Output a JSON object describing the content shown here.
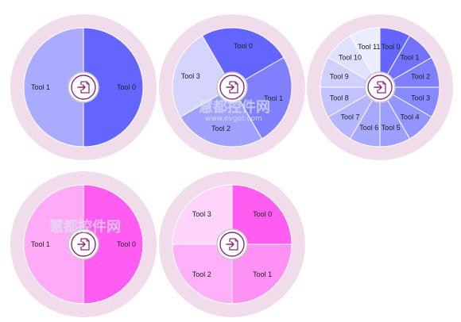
{
  "watermark": {
    "text": "慧都控件网",
    "subtext": "www.evget.com"
  },
  "center_icon": "import-document-icon",
  "colors": {
    "outer_ring": "#f0dcea",
    "hub_ring": "#c8c8c8",
    "hub_fill": "#ffffff",
    "icon": "#8a2a7a"
  },
  "menus": [
    {
      "items": [
        "Tool 0",
        "Tool 1"
      ],
      "colors": [
        "#6464ff",
        "#aaaaff"
      ]
    },
    {
      "items": [
        "Tool 0",
        "Tool 1",
        "Tool 2",
        "Tool 3"
      ],
      "colors": [
        "#6464ff",
        "#8080ff",
        "#a0a0ff",
        "#d4d4ff"
      ]
    },
    {
      "items": [
        "Tool 0",
        "Tool 1",
        "Tool 2",
        "Tool 3",
        "Tool 4",
        "Tool 5",
        "Tool 6",
        "Tool 7",
        "Tool 8",
        "Tool 9",
        "Tool 10",
        "Tool 11"
      ],
      "colors": [
        "#6464ff",
        "#7272ff",
        "#7f7fff",
        "#8989ff",
        "#9494ff",
        "#9e9eff",
        "#a8a8ff",
        "#b4b4ff",
        "#c2c2ff",
        "#d0d0ff",
        "#e0e0ff",
        "#ececff"
      ]
    },
    {
      "items": [
        "Tool 0",
        "Tool 1"
      ],
      "colors": [
        "#ff5cf2",
        "#ffaaf6"
      ]
    },
    {
      "items": [
        "Tool 0",
        "Tool 1",
        "Tool 2",
        "Tool 3"
      ],
      "colors": [
        "#ff5cf2",
        "#ff90f4",
        "#ffb0f8",
        "#ffd4fa"
      ]
    }
  ]
}
